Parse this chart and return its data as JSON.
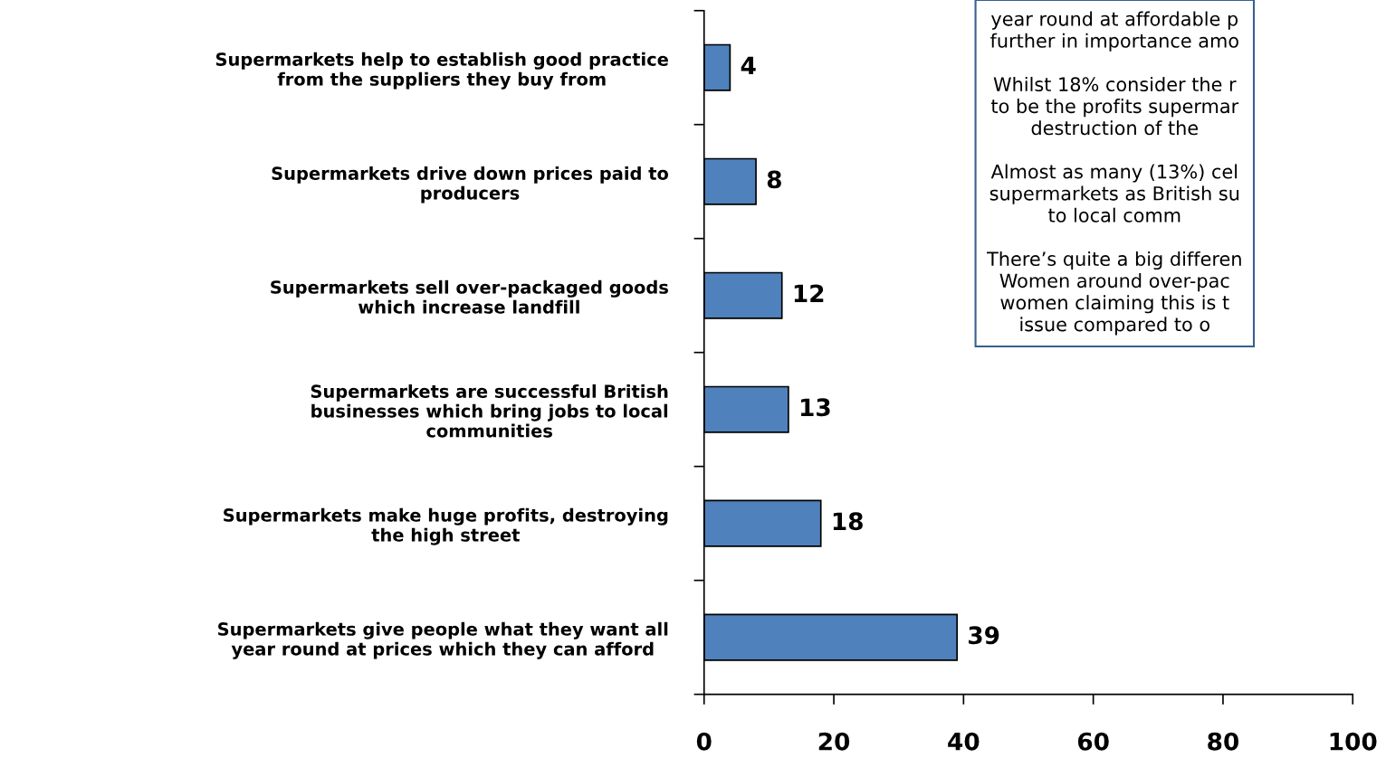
{
  "chart_data": {
    "type": "bar",
    "orientation": "horizontal",
    "categories": [
      "Supermarkets help to establish good practice\nfrom the suppliers they buy from",
      "Supermarkets drive down prices paid to\nproducers",
      "Supermarkets sell over-packaged goods\nwhich increase landfill",
      "Supermarkets are successful British\nbusinesses which bring jobs to local\ncommunities",
      "Supermarkets make huge profits, destroying\nthe high street",
      "Supermarkets give people what they want all\nyear round at prices which they can afford"
    ],
    "values": [
      4,
      8,
      12,
      13,
      18,
      39
    ],
    "color": "#4f81bd",
    "xlim": [
      0,
      100
    ],
    "xticks": [
      0,
      20,
      40,
      60,
      80,
      100
    ],
    "data_labels": true,
    "annotations": [
      "year round at affordable p\nfurther in importance amo",
      "Whilst 18% consider the r\nto be the profits supermar\ndestruction of the",
      "Almost as many (13%) cel\nsupermarkets as British su\nto local comm",
      "There’s quite a big differen\nWomen around over-pac\nwomen claiming this is t\nissue compared to o"
    ]
  }
}
